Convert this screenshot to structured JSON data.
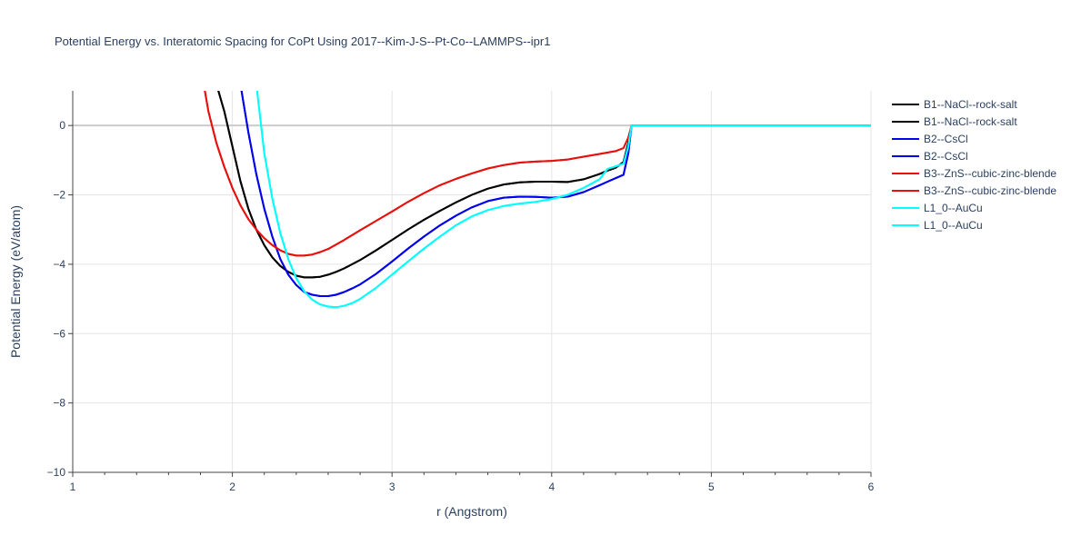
{
  "chart_data": {
    "type": "line",
    "title": "Potential Energy vs. Interatomic Spacing for CoPt Using 2017--Kim-J-S--Pt-Co--LAMMPS--ipr1",
    "xlabel": "r (Angstrom)",
    "ylabel": "Potential Energy (eV/atom)",
    "xlim": [
      1,
      6
    ],
    "ylim": [
      -10,
      1
    ],
    "xticks": [
      1,
      2,
      3,
      4,
      5,
      6
    ],
    "yticks": [
      -10,
      -8,
      -6,
      -4,
      -2,
      0
    ],
    "xtick_labels": [
      "1",
      "2",
      "3",
      "4",
      "5",
      "6"
    ],
    "ytick_labels": [
      "−10",
      "−8",
      "−6",
      "−4",
      "−2",
      "0"
    ],
    "grid": true,
    "legend_position": "right",
    "series": [
      {
        "name": "B1--NaCl--rock-salt",
        "color": "#000000",
        "points": [
          [
            1.9,
            1.2
          ],
          [
            1.95,
            0.4
          ],
          [
            2.0,
            -0.6
          ],
          [
            2.05,
            -1.6
          ],
          [
            2.1,
            -2.4
          ],
          [
            2.15,
            -3.0
          ],
          [
            2.2,
            -3.45
          ],
          [
            2.25,
            -3.8
          ],
          [
            2.3,
            -4.05
          ],
          [
            2.35,
            -4.22
          ],
          [
            2.4,
            -4.33
          ],
          [
            2.45,
            -4.38
          ],
          [
            2.5,
            -4.38
          ],
          [
            2.55,
            -4.36
          ],
          [
            2.6,
            -4.3
          ],
          [
            2.65,
            -4.22
          ],
          [
            2.7,
            -4.12
          ],
          [
            2.8,
            -3.88
          ],
          [
            2.9,
            -3.6
          ],
          [
            3.0,
            -3.3
          ],
          [
            3.1,
            -3.0
          ],
          [
            3.2,
            -2.72
          ],
          [
            3.3,
            -2.46
          ],
          [
            3.4,
            -2.22
          ],
          [
            3.5,
            -2.0
          ],
          [
            3.6,
            -1.82
          ],
          [
            3.7,
            -1.7
          ],
          [
            3.8,
            -1.64
          ],
          [
            3.9,
            -1.62
          ],
          [
            4.0,
            -1.62
          ],
          [
            4.1,
            -1.63
          ],
          [
            4.2,
            -1.55
          ],
          [
            4.3,
            -1.4
          ],
          [
            4.35,
            -1.3
          ],
          [
            4.4,
            -1.22
          ],
          [
            4.45,
            -1.05
          ],
          [
            4.48,
            -0.5
          ],
          [
            4.5,
            0.0
          ],
          [
            5.0,
            0.0
          ],
          [
            6.0,
            0.0
          ]
        ]
      },
      {
        "name": "B1--NaCl--rock-salt",
        "color": "#000000",
        "points": [
          [
            1.9,
            1.2
          ],
          [
            1.95,
            0.4
          ],
          [
            2.0,
            -0.6
          ],
          [
            2.05,
            -1.6
          ],
          [
            2.1,
            -2.4
          ],
          [
            2.15,
            -3.0
          ],
          [
            2.2,
            -3.45
          ],
          [
            2.25,
            -3.8
          ],
          [
            2.3,
            -4.05
          ],
          [
            2.35,
            -4.22
          ],
          [
            2.4,
            -4.33
          ],
          [
            2.45,
            -4.38
          ],
          [
            2.5,
            -4.38
          ],
          [
            2.55,
            -4.36
          ],
          [
            2.6,
            -4.3
          ],
          [
            2.65,
            -4.22
          ],
          [
            2.7,
            -4.12
          ],
          [
            2.8,
            -3.88
          ],
          [
            2.9,
            -3.6
          ],
          [
            3.0,
            -3.3
          ],
          [
            3.1,
            -3.0
          ],
          [
            3.2,
            -2.72
          ],
          [
            3.3,
            -2.46
          ],
          [
            3.4,
            -2.22
          ],
          [
            3.5,
            -2.0
          ],
          [
            3.6,
            -1.82
          ],
          [
            3.7,
            -1.7
          ],
          [
            3.8,
            -1.64
          ],
          [
            3.9,
            -1.62
          ],
          [
            4.0,
            -1.62
          ],
          [
            4.1,
            -1.63
          ],
          [
            4.2,
            -1.55
          ],
          [
            4.3,
            -1.4
          ],
          [
            4.35,
            -1.3
          ],
          [
            4.4,
            -1.22
          ],
          [
            4.45,
            -1.05
          ],
          [
            4.48,
            -0.5
          ],
          [
            4.5,
            0.0
          ],
          [
            5.0,
            0.0
          ],
          [
            6.0,
            0.0
          ]
        ]
      },
      {
        "name": "B2--CsCl",
        "color": "#0000ee",
        "points": [
          [
            2.05,
            1.2
          ],
          [
            2.1,
            -0.2
          ],
          [
            2.15,
            -1.4
          ],
          [
            2.2,
            -2.4
          ],
          [
            2.25,
            -3.2
          ],
          [
            2.3,
            -3.85
          ],
          [
            2.35,
            -4.3
          ],
          [
            2.4,
            -4.6
          ],
          [
            2.45,
            -4.8
          ],
          [
            2.5,
            -4.88
          ],
          [
            2.55,
            -4.92
          ],
          [
            2.6,
            -4.92
          ],
          [
            2.65,
            -4.88
          ],
          [
            2.7,
            -4.8
          ],
          [
            2.75,
            -4.7
          ],
          [
            2.8,
            -4.58
          ],
          [
            2.9,
            -4.28
          ],
          [
            3.0,
            -3.92
          ],
          [
            3.1,
            -3.55
          ],
          [
            3.2,
            -3.2
          ],
          [
            3.3,
            -2.88
          ],
          [
            3.4,
            -2.6
          ],
          [
            3.5,
            -2.36
          ],
          [
            3.6,
            -2.18
          ],
          [
            3.7,
            -2.08
          ],
          [
            3.8,
            -2.05
          ],
          [
            3.9,
            -2.06
          ],
          [
            4.0,
            -2.08
          ],
          [
            4.1,
            -2.05
          ],
          [
            4.2,
            -1.92
          ],
          [
            4.3,
            -1.72
          ],
          [
            4.35,
            -1.62
          ],
          [
            4.4,
            -1.52
          ],
          [
            4.45,
            -1.42
          ],
          [
            4.48,
            -0.8
          ],
          [
            4.5,
            0.0
          ],
          [
            5.0,
            0.0
          ],
          [
            6.0,
            0.0
          ]
        ]
      },
      {
        "name": "B2--CsCl",
        "color": "#0000ee",
        "points": [
          [
            2.05,
            1.2
          ],
          [
            2.1,
            -0.2
          ],
          [
            2.15,
            -1.4
          ],
          [
            2.2,
            -2.4
          ],
          [
            2.25,
            -3.2
          ],
          [
            2.3,
            -3.85
          ],
          [
            2.35,
            -4.3
          ],
          [
            2.4,
            -4.6
          ],
          [
            2.45,
            -4.8
          ],
          [
            2.5,
            -4.88
          ],
          [
            2.55,
            -4.92
          ],
          [
            2.6,
            -4.92
          ],
          [
            2.65,
            -4.88
          ],
          [
            2.7,
            -4.8
          ],
          [
            2.75,
            -4.7
          ],
          [
            2.8,
            -4.58
          ],
          [
            2.9,
            -4.28
          ],
          [
            3.0,
            -3.92
          ],
          [
            3.1,
            -3.55
          ],
          [
            3.2,
            -3.2
          ],
          [
            3.3,
            -2.88
          ],
          [
            3.4,
            -2.6
          ],
          [
            3.5,
            -2.36
          ],
          [
            3.6,
            -2.18
          ],
          [
            3.7,
            -2.08
          ],
          [
            3.8,
            -2.05
          ],
          [
            3.9,
            -2.06
          ],
          [
            4.0,
            -2.08
          ],
          [
            4.1,
            -2.05
          ],
          [
            4.2,
            -1.92
          ],
          [
            4.3,
            -1.72
          ],
          [
            4.35,
            -1.62
          ],
          [
            4.4,
            -1.52
          ],
          [
            4.45,
            -1.42
          ],
          [
            4.48,
            -0.8
          ],
          [
            4.5,
            0.0
          ],
          [
            5.0,
            0.0
          ],
          [
            6.0,
            0.0
          ]
        ]
      },
      {
        "name": "B3--ZnS--cubic-zinc-blende",
        "color": "#e8100c",
        "points": [
          [
            1.82,
            1.2
          ],
          [
            1.85,
            0.4
          ],
          [
            1.9,
            -0.5
          ],
          [
            1.95,
            -1.2
          ],
          [
            2.0,
            -1.8
          ],
          [
            2.05,
            -2.3
          ],
          [
            2.1,
            -2.7
          ],
          [
            2.15,
            -3.0
          ],
          [
            2.2,
            -3.25
          ],
          [
            2.25,
            -3.45
          ],
          [
            2.3,
            -3.6
          ],
          [
            2.35,
            -3.7
          ],
          [
            2.4,
            -3.75
          ],
          [
            2.45,
            -3.75
          ],
          [
            2.5,
            -3.72
          ],
          [
            2.55,
            -3.65
          ],
          [
            2.6,
            -3.56
          ],
          [
            2.7,
            -3.3
          ],
          [
            2.8,
            -3.02
          ],
          [
            2.9,
            -2.75
          ],
          [
            3.0,
            -2.48
          ],
          [
            3.1,
            -2.2
          ],
          [
            3.2,
            -1.95
          ],
          [
            3.3,
            -1.72
          ],
          [
            3.4,
            -1.54
          ],
          [
            3.5,
            -1.38
          ],
          [
            3.6,
            -1.24
          ],
          [
            3.7,
            -1.14
          ],
          [
            3.8,
            -1.07
          ],
          [
            3.9,
            -1.04
          ],
          [
            4.0,
            -1.02
          ],
          [
            4.1,
            -0.98
          ],
          [
            4.2,
            -0.9
          ],
          [
            4.3,
            -0.82
          ],
          [
            4.4,
            -0.74
          ],
          [
            4.45,
            -0.65
          ],
          [
            4.48,
            -0.35
          ],
          [
            4.5,
            0.0
          ],
          [
            5.0,
            0.0
          ],
          [
            6.0,
            0.0
          ]
        ]
      },
      {
        "name": "B3--ZnS--cubic-zinc-blende",
        "color": "#e8100c",
        "points": [
          [
            1.82,
            1.2
          ],
          [
            1.85,
            0.4
          ],
          [
            1.9,
            -0.5
          ],
          [
            1.95,
            -1.2
          ],
          [
            2.0,
            -1.8
          ],
          [
            2.05,
            -2.3
          ],
          [
            2.1,
            -2.7
          ],
          [
            2.15,
            -3.0
          ],
          [
            2.2,
            -3.25
          ],
          [
            2.25,
            -3.45
          ],
          [
            2.3,
            -3.6
          ],
          [
            2.35,
            -3.7
          ],
          [
            2.4,
            -3.75
          ],
          [
            2.45,
            -3.75
          ],
          [
            2.5,
            -3.72
          ],
          [
            2.55,
            -3.65
          ],
          [
            2.6,
            -3.56
          ],
          [
            2.7,
            -3.3
          ],
          [
            2.8,
            -3.02
          ],
          [
            2.9,
            -2.75
          ],
          [
            3.0,
            -2.48
          ],
          [
            3.1,
            -2.2
          ],
          [
            3.2,
            -1.95
          ],
          [
            3.3,
            -1.72
          ],
          [
            3.4,
            -1.54
          ],
          [
            3.5,
            -1.38
          ],
          [
            3.6,
            -1.24
          ],
          [
            3.7,
            -1.14
          ],
          [
            3.8,
            -1.07
          ],
          [
            3.9,
            -1.04
          ],
          [
            4.0,
            -1.02
          ],
          [
            4.1,
            -0.98
          ],
          [
            4.2,
            -0.9
          ],
          [
            4.3,
            -0.82
          ],
          [
            4.4,
            -0.74
          ],
          [
            4.45,
            -0.65
          ],
          [
            4.48,
            -0.35
          ],
          [
            4.5,
            0.0
          ],
          [
            5.0,
            0.0
          ],
          [
            6.0,
            0.0
          ]
        ]
      },
      {
        "name": "L1_0--AuCu",
        "color": "#00ffff",
        "points": [
          [
            2.15,
            1.2
          ],
          [
            2.2,
            -0.8
          ],
          [
            2.25,
            -2.1
          ],
          [
            2.3,
            -3.1
          ],
          [
            2.35,
            -3.85
          ],
          [
            2.4,
            -4.4
          ],
          [
            2.45,
            -4.78
          ],
          [
            2.5,
            -5.02
          ],
          [
            2.55,
            -5.16
          ],
          [
            2.6,
            -5.22
          ],
          [
            2.65,
            -5.24
          ],
          [
            2.7,
            -5.2
          ],
          [
            2.75,
            -5.12
          ],
          [
            2.8,
            -5.0
          ],
          [
            2.9,
            -4.68
          ],
          [
            3.0,
            -4.3
          ],
          [
            3.1,
            -3.92
          ],
          [
            3.2,
            -3.55
          ],
          [
            3.3,
            -3.2
          ],
          [
            3.4,
            -2.88
          ],
          [
            3.5,
            -2.62
          ],
          [
            3.6,
            -2.44
          ],
          [
            3.7,
            -2.32
          ],
          [
            3.8,
            -2.25
          ],
          [
            3.9,
            -2.2
          ],
          [
            4.0,
            -2.12
          ],
          [
            4.1,
            -2.0
          ],
          [
            4.2,
            -1.8
          ],
          [
            4.3,
            -1.55
          ],
          [
            4.35,
            -1.25
          ],
          [
            4.4,
            -1.18
          ],
          [
            4.45,
            -1.1
          ],
          [
            4.48,
            -0.6
          ],
          [
            4.5,
            0.0
          ],
          [
            5.0,
            0.0
          ],
          [
            6.0,
            0.0
          ]
        ]
      },
      {
        "name": "L1_0--AuCu",
        "color": "#00ffff",
        "points": [
          [
            2.15,
            1.2
          ],
          [
            2.2,
            -0.8
          ],
          [
            2.25,
            -2.1
          ],
          [
            2.3,
            -3.1
          ],
          [
            2.35,
            -3.85
          ],
          [
            2.4,
            -4.4
          ],
          [
            2.45,
            -4.78
          ],
          [
            2.5,
            -5.02
          ],
          [
            2.55,
            -5.16
          ],
          [
            2.6,
            -5.22
          ],
          [
            2.65,
            -5.24
          ],
          [
            2.7,
            -5.2
          ],
          [
            2.75,
            -5.12
          ],
          [
            2.8,
            -5.0
          ],
          [
            2.9,
            -4.68
          ],
          [
            3.0,
            -4.3
          ],
          [
            3.1,
            -3.92
          ],
          [
            3.2,
            -3.55
          ],
          [
            3.3,
            -3.2
          ],
          [
            3.4,
            -2.88
          ],
          [
            3.5,
            -2.62
          ],
          [
            3.6,
            -2.44
          ],
          [
            3.7,
            -2.32
          ],
          [
            3.8,
            -2.25
          ],
          [
            3.9,
            -2.2
          ],
          [
            4.0,
            -2.12
          ],
          [
            4.1,
            -2.0
          ],
          [
            4.2,
            -1.8
          ],
          [
            4.3,
            -1.55
          ],
          [
            4.35,
            -1.25
          ],
          [
            4.4,
            -1.18
          ],
          [
            4.45,
            -1.1
          ],
          [
            4.48,
            -0.6
          ],
          [
            4.5,
            0.0
          ],
          [
            5.0,
            0.0
          ],
          [
            6.0,
            0.0
          ]
        ]
      }
    ]
  }
}
